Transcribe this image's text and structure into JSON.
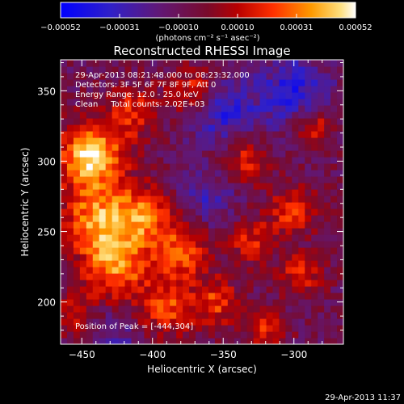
{
  "chart_data": {
    "type": "heatmap",
    "title": "Reconstructed RHESSI Image",
    "xlabel": "Heliocentric X (arcsec)",
    "ylabel": "Heliocentric Y (arcsec)",
    "xlim": [
      -465,
      -265
    ],
    "ylim": [
      170,
      372
    ],
    "xticks": [
      -450,
      -400,
      -350,
      -300
    ],
    "yticks": [
      200,
      250,
      300,
      350
    ],
    "colorbar": {
      "min": -0.00052,
      "max": 0.00052,
      "ticks": [
        "-0.00052",
        "-0.00031",
        "-0.00010",
        "0.00010",
        "0.00031",
        "0.00052"
      ],
      "label": "(photons cm⁻² s⁻¹ asec⁻²)"
    },
    "annotations": [
      "29-Apr-2013 08:21:48.000 to 08:23:32.000",
      "Detectors: 3F 5F 6F 7F 8F 9F, Att 0",
      "Energy Range: 12.0 - 25.0 keV",
      "Clean     Total counts: 2.02E+03"
    ],
    "peak_label": "Position of Peak = [-444,304]",
    "peak": [
      -444,
      304
    ],
    "sources": [
      {
        "x": -444,
        "y": 304,
        "amp": 1.0,
        "sigma": 16
      },
      {
        "x": -438,
        "y": 258,
        "amp": 0.75,
        "sigma": 18
      },
      {
        "x": -425,
        "y": 225,
        "amp": 0.7,
        "sigma": 16
      },
      {
        "x": -405,
        "y": 262,
        "amp": 0.6,
        "sigma": 14
      },
      {
        "x": -380,
        "y": 235,
        "amp": 0.6,
        "sigma": 14
      },
      {
        "x": -390,
        "y": 195,
        "amp": 0.55,
        "sigma": 13
      },
      {
        "x": -355,
        "y": 200,
        "amp": 0.5,
        "sigma": 12
      },
      {
        "x": -415,
        "y": 335,
        "amp": 0.45,
        "sigma": 13
      },
      {
        "x": -370,
        "y": 350,
        "amp": 0.5,
        "sigma": 12
      },
      {
        "x": -335,
        "y": 300,
        "amp": 0.45,
        "sigma": 12
      },
      {
        "x": -330,
        "y": 245,
        "amp": 0.45,
        "sigma": 11
      },
      {
        "x": -300,
        "y": 265,
        "amp": 0.55,
        "sigma": 11
      },
      {
        "x": -295,
        "y": 220,
        "amp": 0.5,
        "sigma": 10
      },
      {
        "x": -285,
        "y": 325,
        "amp": 0.45,
        "sigma": 10
      },
      {
        "x": -320,
        "y": 180,
        "amp": 0.45,
        "sigma": 10
      },
      {
        "x": -455,
        "y": 190,
        "amp": 0.4,
        "sigma": 11
      },
      {
        "x": -350,
        "y": 335,
        "amp": -0.5,
        "sigma": 16
      },
      {
        "x": -300,
        "y": 350,
        "amp": -0.5,
        "sigma": 18
      },
      {
        "x": -360,
        "y": 275,
        "amp": -0.35,
        "sigma": 14
      },
      {
        "x": -430,
        "y": 175,
        "amp": -0.3,
        "sigma": 14
      }
    ]
  },
  "footer": {
    "timestamp": "29-Apr-2013 11:37"
  }
}
